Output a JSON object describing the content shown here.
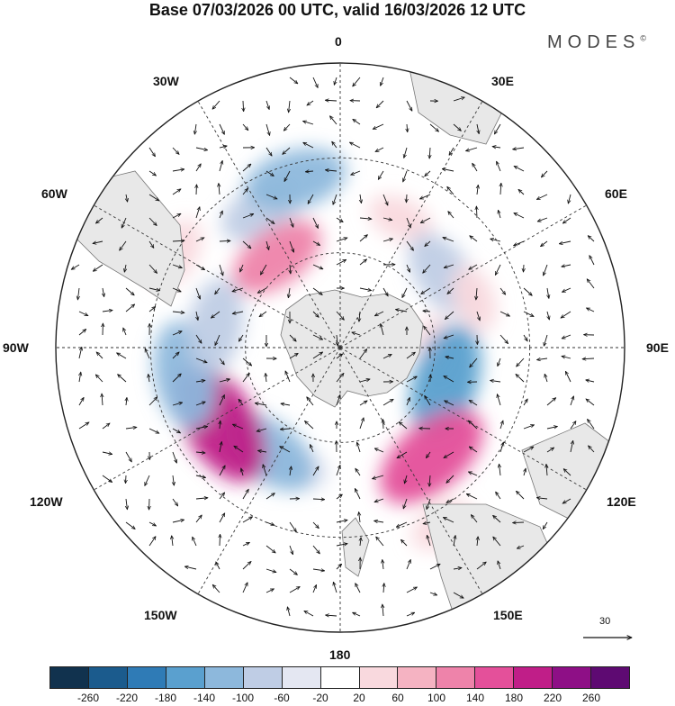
{
  "title": "Base 07/03/2026 00 UTC, valid 16/03/2026 12 UTC",
  "brand": "MODES",
  "brand_mark": "©",
  "longitude_labels": {
    "n": "0",
    "e30": "30E",
    "e60": "60E",
    "e90": "90E",
    "e120": "120E",
    "e150": "150E",
    "s": "180",
    "w150": "150W",
    "w120": "120W",
    "w90": "90W",
    "w60": "60W",
    "w30": "30W"
  },
  "reference_vector": "30",
  "colorbar": {
    "colors": [
      "#11324e",
      "#1b5b8d",
      "#2f7bb6",
      "#5aa0cf",
      "#8db8dc",
      "#bfcde5",
      "#e4e7f2",
      "#ffffff",
      "#f9d9de",
      "#f5b3c2",
      "#ee83aa",
      "#e4509a",
      "#c01e88",
      "#8e0f86",
      "#5e0a72"
    ],
    "ticks": [
      "-260",
      "-220",
      "-180",
      "-140",
      "-100",
      "-60",
      "-20",
      "20",
      "60",
      "100",
      "140",
      "180",
      "220",
      "260"
    ]
  },
  "anomalies": [
    {
      "lon": 330,
      "lat": -40,
      "value": -80
    },
    {
      "lon": 345,
      "lat": -35,
      "value": -120
    },
    {
      "lon": 25,
      "lat": -45,
      "value": 40
    },
    {
      "lon": 55,
      "lat": -50,
      "value": -100
    },
    {
      "lon": 70,
      "lat": -45,
      "value": 40
    },
    {
      "lon": 90,
      "lat": -60,
      "value": 30
    },
    {
      "lon": 108,
      "lat": -55,
      "value": -150
    },
    {
      "lon": 140,
      "lat": -45,
      "value": 160
    },
    {
      "lon": 150,
      "lat": -25,
      "value": 40
    },
    {
      "lon": 200,
      "lat": -50,
      "value": -40
    },
    {
      "lon": 215,
      "lat": -50,
      "value": -130
    },
    {
      "lon": 238,
      "lat": -45,
      "value": 180
    },
    {
      "lon": 260,
      "lat": -40,
      "value": -130
    },
    {
      "lon": 280,
      "lat": -50,
      "value": -100
    },
    {
      "lon": 300,
      "lat": -30,
      "value": 50
    },
    {
      "lon": 325,
      "lat": -55,
      "value": 110
    }
  ]
}
